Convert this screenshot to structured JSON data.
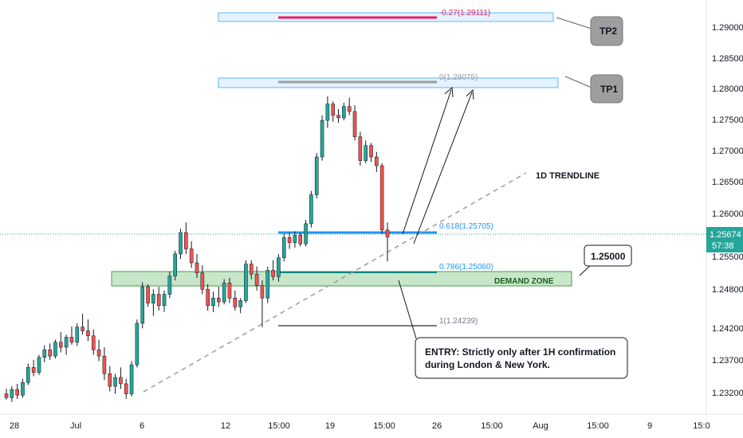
{
  "chart_data": {
    "type": "candlestick",
    "instrument_price_current": "1.25674",
    "countdown": "57:38",
    "y_ticks": [
      "1.29000",
      "1.28500",
      "1.28000",
      "1.27500",
      "1.27000",
      "1.26500",
      "1.26000",
      "1.25500",
      "1.24800",
      "1.24200",
      "1.23700",
      "1.23200"
    ],
    "x_ticks": [
      "28",
      "Jul",
      "6",
      "12",
      "15:00",
      "19",
      "15:00",
      "26",
      "15:00",
      "Aug",
      "15:00",
      "9",
      "15:0"
    ],
    "fib_levels": [
      {
        "label": "-0.27(1.29111)",
        "value": 1.29111
      },
      {
        "label": "0(1.28075)",
        "value": 1.28075
      },
      {
        "label": "0.618(1.25705)",
        "value": 1.25705
      },
      {
        "label": "0.786(1.25060)",
        "value": 1.2506
      },
      {
        "label": "1(1.24239)",
        "value": 1.24239
      }
    ],
    "annotations": {
      "tp2": "TP2",
      "tp1": "TP1",
      "trendline": "1D TRENDLINE",
      "demand_zone": "DEMAND ZONE",
      "level_box": "1.25000",
      "entry_line1": "ENTRY: Strictly only after 1H confirmation",
      "entry_line2": "during London & New York."
    },
    "colors": {
      "up": "#26a69a",
      "down": "#ef5350",
      "fib_blue": "#2962ff",
      "fib_red": "#e91e63",
      "zone_green": "#a5d6a7",
      "tp_box": "#bbdefb"
    },
    "candles": [
      [
        1.2318,
        1.2326,
        1.2309,
        1.2312
      ],
      [
        1.2312,
        1.233,
        1.2305,
        1.2325
      ],
      [
        1.2325,
        1.2334,
        1.231,
        1.2316
      ],
      [
        1.2316,
        1.2342,
        1.2312,
        1.2336
      ],
      [
        1.2336,
        1.2366,
        1.2332,
        1.236
      ],
      [
        1.236,
        1.2372,
        1.2346,
        1.2352
      ],
      [
        1.2352,
        1.238,
        1.2348,
        1.2376
      ],
      [
        1.2376,
        1.2395,
        1.2368,
        1.2388
      ],
      [
        1.2388,
        1.2398,
        1.2372,
        1.2378
      ],
      [
        1.2378,
        1.2404,
        1.2374,
        1.24
      ],
      [
        1.24,
        1.2416,
        1.2384,
        1.2392
      ],
      [
        1.2392,
        1.2412,
        1.238,
        1.2408
      ],
      [
        1.2408,
        1.2425,
        1.2396,
        1.24
      ],
      [
        1.24,
        1.243,
        1.2394,
        1.2424
      ],
      [
        1.2424,
        1.2445,
        1.2412,
        1.2418
      ],
      [
        1.2418,
        1.2436,
        1.2402,
        1.241
      ],
      [
        1.241,
        1.242,
        1.238,
        1.2388
      ],
      [
        1.2388,
        1.2404,
        1.237,
        1.2378
      ],
      [
        1.2378,
        1.2392,
        1.234,
        1.235
      ],
      [
        1.235,
        1.2362,
        1.2322,
        1.233
      ],
      [
        1.233,
        1.235,
        1.2318,
        1.2344
      ],
      [
        1.2344,
        1.236,
        1.2326,
        1.2334
      ],
      [
        1.2334,
        1.2342,
        1.231,
        1.2318
      ],
      [
        1.2318,
        1.237,
        1.2314,
        1.2364
      ],
      [
        1.2364,
        1.2436,
        1.236,
        1.243
      ],
      [
        1.243,
        1.2495,
        1.2422,
        1.2488
      ],
      [
        1.2488,
        1.2492,
        1.2456,
        1.2462
      ],
      [
        1.2462,
        1.2484,
        1.2442,
        1.2476
      ],
      [
        1.2476,
        1.2488,
        1.245,
        1.2458
      ],
      [
        1.2458,
        1.2482,
        1.2448,
        1.2476
      ],
      [
        1.2476,
        1.2512,
        1.247,
        1.2505
      ],
      [
        1.2505,
        1.2545,
        1.2498,
        1.254
      ],
      [
        1.254,
        1.258,
        1.2532,
        1.2574
      ],
      [
        1.2574,
        1.259,
        1.254,
        1.2548
      ],
      [
        1.2548,
        1.256,
        1.2518,
        1.2526
      ],
      [
        1.2526,
        1.254,
        1.2502,
        1.251
      ],
      [
        1.251,
        1.2522,
        1.2476,
        1.2484
      ],
      [
        1.2484,
        1.2492,
        1.245,
        1.2458
      ],
      [
        1.2458,
        1.248,
        1.2448,
        1.247
      ],
      [
        1.247,
        1.2488,
        1.2456,
        1.2464
      ],
      [
        1.2464,
        1.25,
        1.246,
        1.2494
      ],
      [
        1.2494,
        1.2502,
        1.2462,
        1.247
      ],
      [
        1.247,
        1.2482,
        1.245,
        1.2456
      ],
      [
        1.2456,
        1.247,
        1.2446,
        1.2466
      ],
      [
        1.2466,
        1.253,
        1.2462,
        1.2524
      ],
      [
        1.2524,
        1.253,
        1.25,
        1.2508
      ],
      [
        1.2508,
        1.252,
        1.2482,
        1.249
      ],
      [
        1.249,
        1.2498,
        1.2424,
        1.247
      ],
      [
        1.247,
        1.252,
        1.2462,
        1.2514
      ],
      [
        1.2514,
        1.253,
        1.2498,
        1.2504
      ],
      [
        1.2504,
        1.254,
        1.2496,
        1.2534
      ],
      [
        1.2534,
        1.2572,
        1.2528,
        1.2566
      ],
      [
        1.2566,
        1.2574,
        1.2548,
        1.2558
      ],
      [
        1.2558,
        1.2576,
        1.255,
        1.257
      ],
      [
        1.257,
        1.2574,
        1.2552,
        1.2556
      ],
      [
        1.2556,
        1.2594,
        1.2552,
        1.2588
      ],
      [
        1.2588,
        1.264,
        1.2582,
        1.2634
      ],
      [
        1.2634,
        1.27,
        1.2628,
        1.2694
      ],
      [
        1.2694,
        1.276,
        1.2688,
        1.2752
      ],
      [
        1.2752,
        1.279,
        1.274,
        1.2778
      ],
      [
        1.2778,
        1.2782,
        1.275,
        1.276
      ],
      [
        1.276,
        1.277,
        1.2748,
        1.2756
      ],
      [
        1.2756,
        1.278,
        1.2752,
        1.2774
      ],
      [
        1.2774,
        1.2788,
        1.276,
        1.2766
      ],
      [
        1.2766,
        1.2776,
        1.272,
        1.2726
      ],
      [
        1.2726,
        1.2734,
        1.268,
        1.2688
      ],
      [
        1.2688,
        1.272,
        1.2684,
        1.2712
      ],
      [
        1.2712,
        1.2716,
        1.2686,
        1.2694
      ],
      [
        1.2694,
        1.2702,
        1.267,
        1.268
      ],
      [
        1.268,
        1.2684,
        1.2572,
        1.2578
      ],
      [
        1.2578,
        1.259,
        1.2528,
        1.2567
      ]
    ]
  }
}
